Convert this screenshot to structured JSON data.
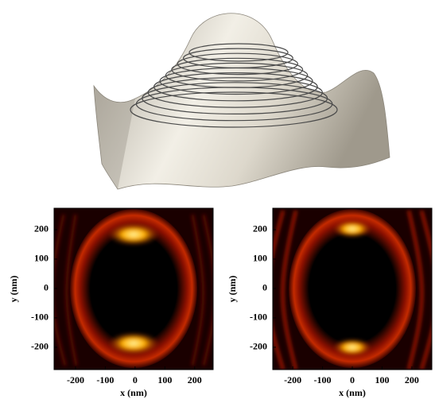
{
  "chart_data": [
    {
      "type": "heatmap",
      "xlabel": "x (nm)",
      "ylabel": "y (nm)",
      "xlim": [
        -272,
        262
      ],
      "ylim": [
        -276,
        273
      ],
      "xticks": [
        -200,
        -100,
        0,
        100,
        200
      ],
      "yticks": [
        200,
        100,
        0,
        -100,
        -200
      ]
    },
    {
      "type": "heatmap",
      "xlabel": "x (nm)",
      "ylabel": "y (nm)",
      "xlim": [
        -267,
        267
      ],
      "ylim": [
        -276,
        273
      ],
      "xticks": [
        -200,
        -100,
        0,
        100,
        200
      ],
      "yticks": [
        200,
        100,
        0,
        -100,
        -200
      ]
    }
  ]
}
